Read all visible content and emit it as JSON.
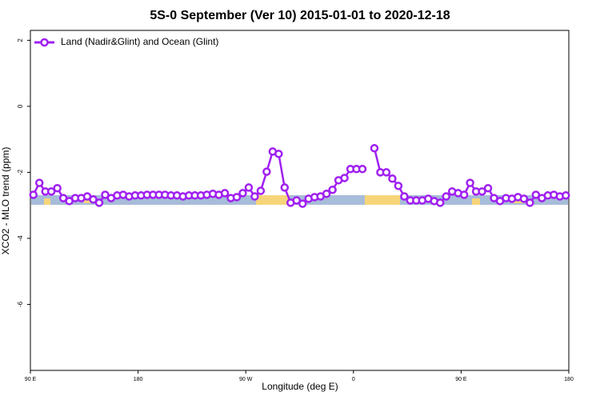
{
  "chart_data": {
    "type": "line",
    "title": "5S-0 September (Ver 10)   2015-01-01 to 2020-12-18",
    "x_label": "Longitude (deg E)",
    "y_label": "XCO2 - MLO trend (ppm)",
    "xlim": [
      90,
      540
    ],
    "xticks": [
      {
        "value": 90,
        "label": "90 E"
      },
      {
        "value": 180,
        "label": "180"
      },
      {
        "value": 270,
        "label": "90 W"
      },
      {
        "value": 360,
        "label": "0"
      },
      {
        "value": 450,
        "label": "90 E"
      },
      {
        "value": 540,
        "label": "180"
      }
    ],
    "ylim": [
      -8,
      2.3
    ],
    "yticks": [
      2,
      0,
      -2,
      -4,
      -6
    ],
    "legend": "top-left",
    "x": [
      92.5,
      97.5,
      102.5,
      107.5,
      112.5,
      117.5,
      122.5,
      127.5,
      132.5,
      137.5,
      142.5,
      147.5,
      152.5,
      157.5,
      162.5,
      167.5,
      172.5,
      177.5,
      182.5,
      187.5,
      192.5,
      197.5,
      202.5,
      207.5,
      212.5,
      217.5,
      222.5,
      227.5,
      232.5,
      237.5,
      242.5,
      247.5,
      252.5,
      257.5,
      262.5,
      267.5,
      272.5,
      277.5,
      282.5,
      287.5,
      292.5,
      297.5,
      302.5,
      307.5,
      312.5,
      317.5,
      322.5,
      327.5,
      332.5,
      337.5,
      342.5,
      347.5,
      352.5,
      357.5,
      362.5,
      367.5,
      372.5,
      377.5,
      382.5,
      387.5,
      392.5,
      397.5,
      402.5,
      407.5,
      412.5,
      417.5,
      422.5,
      427.5,
      432.5,
      437.5,
      442.5,
      447.5,
      452.5,
      457.5,
      462.5,
      467.5,
      472.5,
      477.5,
      482.5,
      487.5,
      492.5,
      497.5,
      502.5,
      507.5,
      512.5,
      517.5,
      522.5,
      527.5,
      532.5,
      537.5
    ],
    "series": [
      {
        "name": "Land (Nadir&Glint) and Ocean (Glint)",
        "color": "#a020f0",
        "values": [
          -2.68,
          -2.32,
          -2.58,
          -2.58,
          -2.48,
          -2.78,
          -2.87,
          -2.78,
          -2.78,
          -2.73,
          -2.82,
          -2.92,
          -2.68,
          -2.78,
          -2.7,
          -2.68,
          -2.73,
          -2.7,
          -2.7,
          -2.68,
          -2.68,
          -2.68,
          -2.68,
          -2.7,
          -2.7,
          -2.73,
          -2.7,
          -2.7,
          -2.7,
          -2.68,
          -2.65,
          -2.68,
          -2.63,
          -2.78,
          -2.75,
          -2.63,
          -2.46,
          -2.73,
          -2.56,
          -1.98,
          -1.37,
          -1.44,
          -2.46,
          -2.92,
          -2.85,
          -2.95,
          -2.8,
          -2.75,
          -2.73,
          -2.65,
          -2.53,
          -2.24,
          -2.17,
          -1.9,
          -1.9,
          -1.9,
          null,
          -1.27,
          -2.0,
          -2.0,
          -2.19,
          -2.41,
          -2.73,
          -2.85,
          -2.85,
          -2.85,
          -2.8,
          -2.87,
          -2.92,
          -2.73,
          -2.58,
          -2.63,
          -2.68,
          -2.32,
          -2.58,
          -2.58,
          -2.48,
          -2.78,
          -2.87,
          -2.78,
          -2.8,
          -2.75,
          -2.8,
          -2.92,
          -2.68,
          -2.78,
          -2.7,
          -2.68,
          -2.73,
          -2.7
        ]
      }
    ]
  }
}
